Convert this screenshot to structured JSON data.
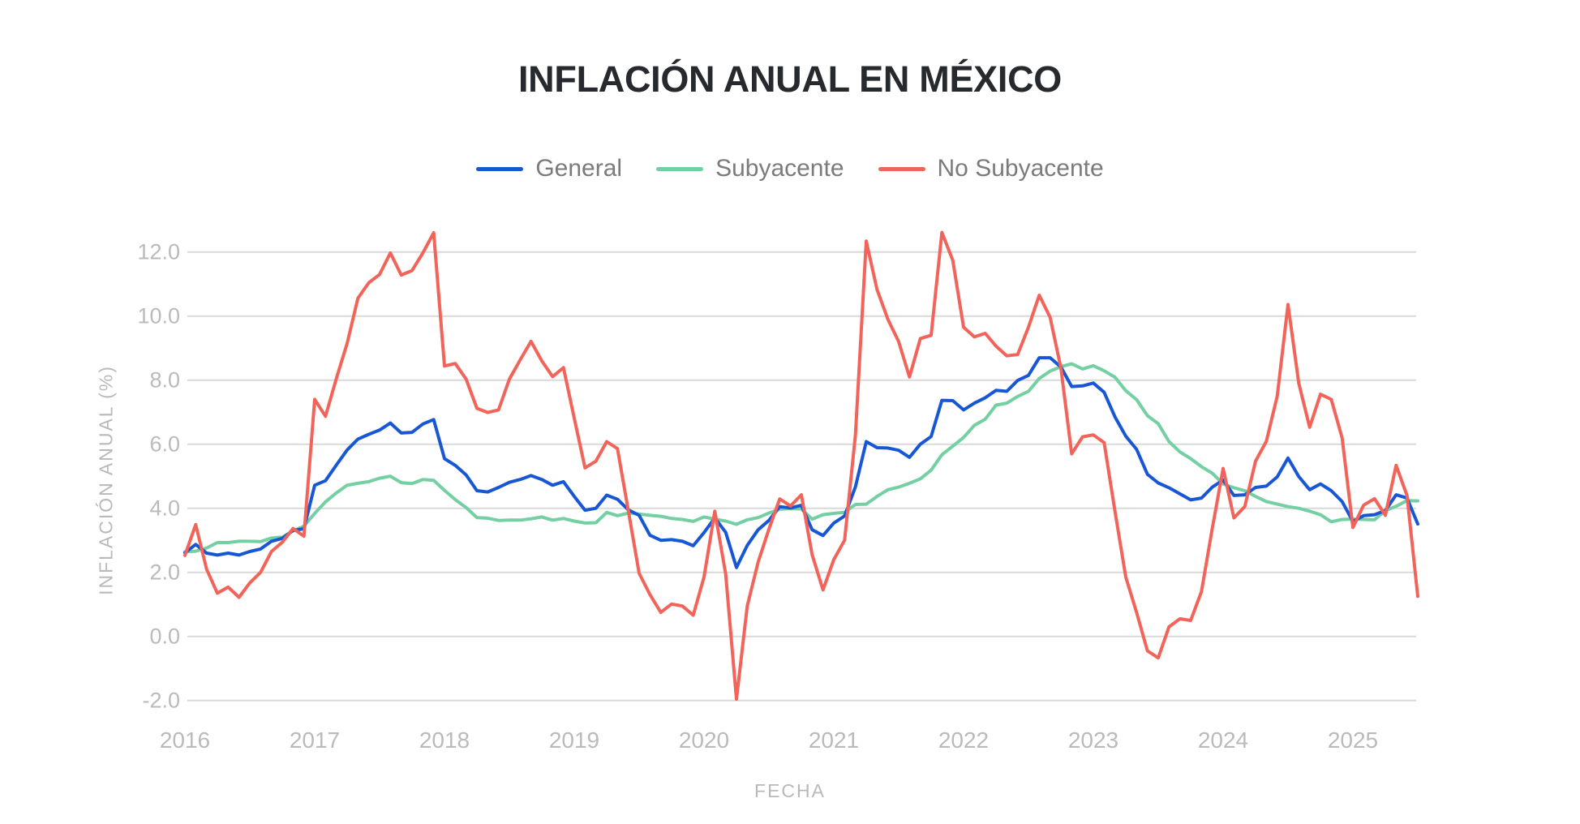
{
  "title": "INFLACIÓN ANUAL EN MÉXICO",
  "colors": {
    "background": "#ffffff",
    "title_text": "#26292e",
    "legend_text": "#797b7f",
    "tick_label": "#b9bab9",
    "axis_title": "#b7b9bd",
    "gridline": "#d9d9d9",
    "general": "#1757d6",
    "subyacente": "#74cfa2",
    "no_subyacente": "#f2635a"
  },
  "chart_data": {
    "type": "line",
    "title": "INFLACIÓN ANUAL EN MÉXICO",
    "xlabel": "FECHA",
    "ylabel": "INFLACIÓN ANUAL (%)",
    "legend_position": "top",
    "grid": "horizontal-only",
    "x_monthly_start": "2016-01",
    "x_monthly_end": "2025-07",
    "x_tick_labels": [
      "2016",
      "2017",
      "2018",
      "2019",
      "2020",
      "2021",
      "2022",
      "2023",
      "2024",
      "2025"
    ],
    "y_ticks": [
      -2.0,
      0.0,
      2.0,
      4.0,
      6.0,
      8.0,
      10.0,
      12.0
    ],
    "ylim": [
      -2.0,
      12.0
    ],
    "series": [
      {
        "name": "General",
        "color": "#1757d6",
        "values": [
          2.61,
          2.87,
          2.6,
          2.54,
          2.6,
          2.54,
          2.65,
          2.73,
          2.97,
          3.06,
          3.31,
          3.36,
          4.72,
          4.86,
          5.35,
          5.82,
          6.16,
          6.31,
          6.44,
          6.66,
          6.35,
          6.37,
          6.63,
          6.77,
          5.55,
          5.34,
          5.04,
          4.55,
          4.51,
          4.65,
          4.81,
          4.9,
          5.02,
          4.9,
          4.72,
          4.83,
          4.37,
          3.94,
          4.0,
          4.41,
          4.28,
          3.95,
          3.78,
          3.16,
          3.0,
          3.02,
          2.97,
          2.83,
          3.24,
          3.7,
          3.25,
          2.15,
          2.84,
          3.33,
          3.62,
          4.05,
          4.01,
          4.09,
          3.33,
          3.15,
          3.54,
          3.76,
          4.67,
          6.08,
          5.89,
          5.88,
          5.81,
          5.59,
          6.0,
          6.24,
          7.37,
          7.36,
          7.07,
          7.28,
          7.45,
          7.68,
          7.65,
          7.99,
          8.15,
          8.7,
          8.7,
          8.41,
          7.8,
          7.82,
          7.91,
          7.62,
          6.85,
          6.25,
          5.84,
          5.06,
          4.79,
          4.64,
          4.45,
          4.26,
          4.32,
          4.66,
          4.88,
          4.4,
          4.42,
          4.65,
          4.69,
          4.98,
          5.57,
          4.99,
          4.58,
          4.76,
          4.55,
          4.21,
          3.59,
          3.77,
          3.8,
          3.93,
          4.42,
          4.32,
          3.51
        ]
      },
      {
        "name": "Subyacente",
        "color": "#74cfa2",
        "values": [
          2.64,
          2.66,
          2.76,
          2.93,
          2.93,
          2.97,
          2.97,
          2.96,
          3.07,
          3.1,
          3.29,
          3.44,
          3.84,
          4.2,
          4.48,
          4.72,
          4.78,
          4.83,
          4.94,
          5.0,
          4.8,
          4.77,
          4.9,
          4.87,
          4.56,
          4.27,
          4.02,
          3.71,
          3.69,
          3.62,
          3.63,
          3.63,
          3.67,
          3.73,
          3.63,
          3.68,
          3.6,
          3.54,
          3.55,
          3.87,
          3.77,
          3.85,
          3.82,
          3.78,
          3.75,
          3.68,
          3.65,
          3.59,
          3.73,
          3.66,
          3.6,
          3.5,
          3.64,
          3.71,
          3.85,
          3.97,
          3.99,
          3.98,
          3.66,
          3.8,
          3.84,
          3.87,
          4.12,
          4.13,
          4.37,
          4.58,
          4.66,
          4.78,
          4.92,
          5.19,
          5.67,
          5.94,
          6.21,
          6.59,
          6.78,
          7.22,
          7.28,
          7.49,
          7.65,
          8.05,
          8.28,
          8.42,
          8.51,
          8.35,
          8.45,
          8.29,
          8.09,
          7.67,
          7.39,
          6.89,
          6.64,
          6.08,
          5.76,
          5.55,
          5.3,
          5.09,
          4.76,
          4.64,
          4.55,
          4.37,
          4.21,
          4.13,
          4.05,
          4.0,
          3.91,
          3.8,
          3.58,
          3.65,
          3.66,
          3.65,
          3.64,
          3.93,
          4.06,
          4.24,
          4.23
        ]
      },
      {
        "name": "No Subyacente",
        "color": "#f2635a",
        "values": [
          2.53,
          3.49,
          2.1,
          1.35,
          1.54,
          1.22,
          1.67,
          2.0,
          2.65,
          2.94,
          3.37,
          3.13,
          7.4,
          6.87,
          8.05,
          9.15,
          10.56,
          11.04,
          11.3,
          11.97,
          11.28,
          11.42,
          11.97,
          12.6,
          8.44,
          8.52,
          8.03,
          7.12,
          6.99,
          7.07,
          8.03,
          8.63,
          9.21,
          8.6,
          8.11,
          8.39,
          6.81,
          5.26,
          5.47,
          6.08,
          5.86,
          3.92,
          1.97,
          1.31,
          0.75,
          1.01,
          0.95,
          0.66,
          1.85,
          3.91,
          1.95,
          -1.96,
          0.95,
          2.32,
          3.35,
          4.29,
          4.07,
          4.42,
          2.55,
          1.45,
          2.4,
          3.0,
          6.3,
          12.34,
          10.83,
          9.9,
          9.2,
          8.1,
          9.3,
          9.4,
          12.61,
          11.74,
          9.65,
          9.35,
          9.46,
          9.06,
          8.76,
          8.8,
          9.65,
          10.65,
          9.96,
          8.38,
          5.7,
          6.23,
          6.29,
          6.05,
          3.9,
          1.85,
          0.75,
          -0.45,
          -0.67,
          0.3,
          0.55,
          0.5,
          1.4,
          3.38,
          5.24,
          3.7,
          4.05,
          5.47,
          6.09,
          7.5,
          10.36,
          7.9,
          6.53,
          7.56,
          7.4,
          6.2,
          3.4,
          4.1,
          4.3,
          3.78,
          5.34,
          4.4,
          1.25
        ]
      }
    ]
  }
}
